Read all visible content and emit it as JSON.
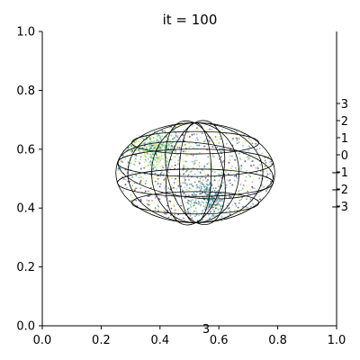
{
  "chart_data": {
    "type": "scatter",
    "title": "it = 100",
    "xlabel": "",
    "ylabel": "",
    "xlim": [
      0.0,
      1.0
    ],
    "ylim": [
      0.0,
      1.0
    ],
    "x_ticks": [
      "0.0",
      "0.2",
      "0.4",
      "0.6",
      "0.8",
      "1.0"
    ],
    "y_ticks": [
      "0.0",
      "0.2",
      "0.4",
      "0.6",
      "0.8",
      "1.0"
    ],
    "right_axis_ticks": [
      "3",
      "2",
      "1",
      "0",
      "−1",
      "−2",
      "−3"
    ],
    "bottom_stray_label": "3",
    "grid": false,
    "legend": "none",
    "sphere": {
      "center": [
        0.52,
        0.52
      ],
      "radius_x": 0.27,
      "radius_y": 0.17
    },
    "point_cloud": {
      "count": 1600,
      "dense_cluster_centers": [
        [
          0.38,
          0.6
        ],
        [
          0.56,
          0.44
        ]
      ],
      "colormap": "viridis"
    },
    "colors": {
      "axis": "#000000",
      "wire": "#000000",
      "viridis": [
        "#440154",
        "#3b528b",
        "#21918c",
        "#5ec962",
        "#fde725"
      ]
    }
  }
}
